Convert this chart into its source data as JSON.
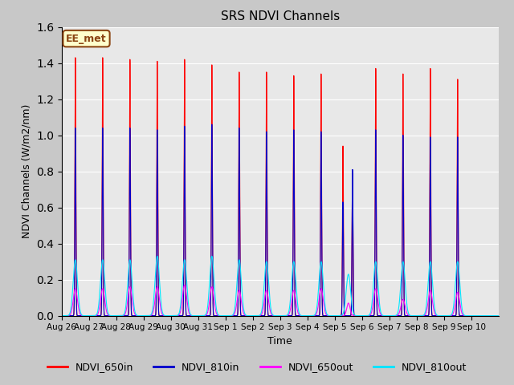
{
  "title": "SRS NDVI Channels",
  "xlabel": "Time",
  "ylabel": "NDVI Channels (W/m2/nm)",
  "ylim": [
    0.0,
    1.6
  ],
  "yticks": [
    0.0,
    0.2,
    0.4,
    0.6,
    0.8,
    1.0,
    1.2,
    1.4,
    1.6
  ],
  "fig_facecolor": "#c8c8c8",
  "plot_bg_color": "#e8e8e8",
  "annotation_text": "EE_met",
  "annotation_bg": "#ffffcc",
  "annotation_border": "#8b4513",
  "colors": {
    "NDVI_650in": "#ff0000",
    "NDVI_810in": "#0000cc",
    "NDVI_650out": "#ff00ff",
    "NDVI_810out": "#00e5ff"
  },
  "x_tick_labels": [
    "Aug 26",
    "Aug 27",
    "Aug 28",
    "Aug 29",
    "Aug 30",
    "Aug 31",
    "Sep 1",
    "Sep 2",
    "Sep 3",
    "Sep 4",
    "Sep 5",
    "Sep 6",
    "Sep 7",
    "Sep 8",
    "Sep 9",
    "Sep 10"
  ],
  "n_days": 16,
  "peaks_650in": [
    1.43,
    1.43,
    1.42,
    1.41,
    1.42,
    1.39,
    1.35,
    1.35,
    1.33,
    1.34,
    0.94,
    1.37,
    1.34,
    1.37,
    1.31,
    0.0
  ],
  "peaks_810in": [
    1.04,
    1.04,
    1.04,
    1.03,
    1.05,
    1.06,
    1.04,
    1.02,
    1.03,
    1.02,
    0.81,
    1.03,
    1.0,
    0.99,
    0.99,
    0.0
  ],
  "peaks_650out": [
    0.15,
    0.15,
    0.16,
    0.16,
    0.17,
    0.16,
    0.14,
    0.14,
    0.14,
    0.15,
    0.14,
    0.15,
    0.09,
    0.14,
    0.13,
    0.0
  ],
  "peaks_810out": [
    0.31,
    0.31,
    0.31,
    0.33,
    0.31,
    0.33,
    0.31,
    0.3,
    0.3,
    0.3,
    0.3,
    0.3,
    0.3,
    0.3,
    0.3,
    0.0
  ],
  "sep5_650in_peaks": [
    0.94,
    0.79
  ],
  "sep5_810in_peaks": [
    0.63,
    0.81
  ],
  "sep5_offsets": [
    0.3,
    0.65
  ]
}
